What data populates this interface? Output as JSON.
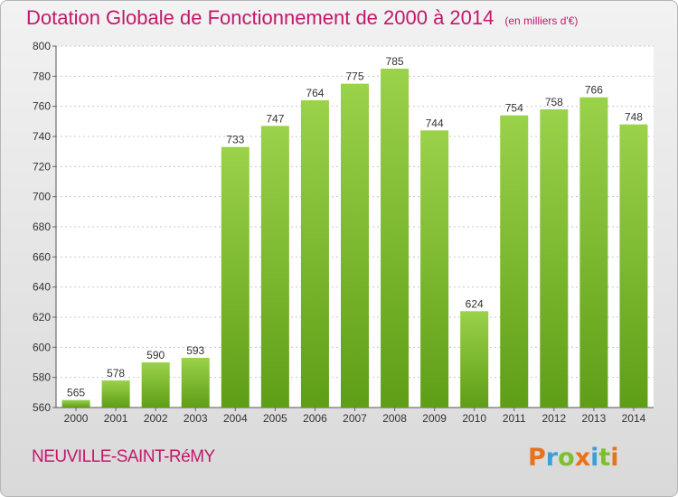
{
  "chart_data": {
    "type": "bar",
    "title": "Dotation Globale de Fonctionnement de 2000 à 2014",
    "subtitle": "(en milliers d'€)",
    "categories": [
      "2000",
      "2001",
      "2002",
      "2003",
      "2004",
      "2005",
      "2006",
      "2007",
      "2008",
      "2009",
      "2010",
      "2011",
      "2012",
      "2013",
      "2014"
    ],
    "values": [
      565,
      578,
      590,
      593,
      733,
      747,
      764,
      775,
      785,
      744,
      624,
      754,
      758,
      766,
      748
    ],
    "ylim": [
      560,
      800
    ],
    "yticks": [
      560,
      580,
      600,
      620,
      640,
      660,
      680,
      700,
      720,
      740,
      760,
      780,
      800
    ],
    "xlabel": "",
    "ylabel": "",
    "grid": true,
    "bar_color": "#7cc02e"
  },
  "footer": {
    "commune": "NEUVILLE-SAINT-RéMY",
    "logo": "Proxiti",
    "logo_colors": [
      "#e8731c",
      "#3aa0d8",
      "#7cc02e",
      "#e8731c",
      "#3aa0d8",
      "#7cc02e",
      "#e8731c"
    ]
  }
}
